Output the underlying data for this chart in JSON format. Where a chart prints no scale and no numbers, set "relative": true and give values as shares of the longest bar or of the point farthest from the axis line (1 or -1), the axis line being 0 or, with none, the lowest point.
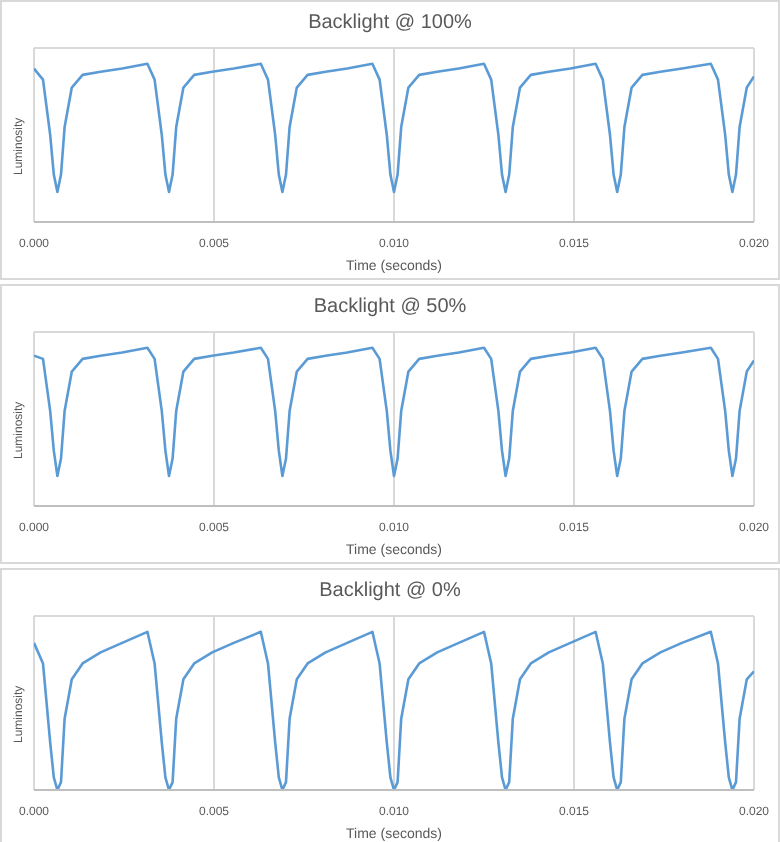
{
  "chart_data": [
    {
      "type": "line",
      "title": "Backlight @ 100%",
      "xlabel": "Time (seconds)",
      "ylabel": "Luminosity",
      "relative": true,
      "grid": true,
      "legend": false,
      "marker": "none",
      "line_style": "solid",
      "xlim": [
        0,
        0.02
      ],
      "xticks": [
        {
          "value": 0,
          "label": "0.000"
        },
        {
          "value": 0.005,
          "label": "0.005"
        },
        {
          "value": 0.01,
          "label": "0.010"
        },
        {
          "value": 0.015,
          "label": "0.015"
        },
        {
          "value": 0.02,
          "label": "0.020"
        }
      ],
      "x": [
        0,
        0.00025,
        0.00045,
        0.00055,
        0.00065,
        0.00075,
        0.00085,
        0.00105,
        0.00135,
        0.00185,
        0.00245,
        0.00315,
        0.00335,
        0.00355,
        0.00365,
        0.00375,
        0.00385,
        0.00395,
        0.00415,
        0.00445,
        0.00495,
        0.00555,
        0.0063,
        0.0065,
        0.0067,
        0.0068,
        0.0069,
        0.007,
        0.0071,
        0.0073,
        0.0076,
        0.0081,
        0.0087,
        0.0094,
        0.0096,
        0.0098,
        0.0099,
        0.01,
        0.0101,
        0.0102,
        0.0104,
        0.0107,
        0.0112,
        0.0118,
        0.0125,
        0.0127,
        0.0129,
        0.013,
        0.0131,
        0.0132,
        0.0133,
        0.0135,
        0.0138,
        0.0143,
        0.0149,
        0.0156,
        0.0158,
        0.016,
        0.0161,
        0.0162,
        0.0163,
        0.0164,
        0.0166,
        0.0169,
        0.0174,
        0.018,
        0.0188,
        0.019,
        0.0192,
        0.0193,
        0.0194,
        0.0195,
        0.0196,
        0.0198,
        0.02
      ],
      "series": [
        {
          "color": "#5b9bd5",
          "values": [
            0.97,
            0.9,
            0.55,
            0.3,
            0.19,
            0.3,
            0.6,
            0.85,
            0.93,
            0.95,
            0.97,
            1.0,
            0.9,
            0.55,
            0.3,
            0.19,
            0.3,
            0.6,
            0.85,
            0.93,
            0.95,
            0.97,
            1.0,
            0.9,
            0.55,
            0.3,
            0.19,
            0.3,
            0.6,
            0.85,
            0.93,
            0.95,
            0.97,
            1.0,
            0.9,
            0.55,
            0.3,
            0.19,
            0.3,
            0.6,
            0.85,
            0.93,
            0.95,
            0.97,
            1.0,
            0.9,
            0.55,
            0.3,
            0.19,
            0.3,
            0.6,
            0.85,
            0.93,
            0.95,
            0.97,
            1.0,
            0.9,
            0.55,
            0.3,
            0.19,
            0.3,
            0.6,
            0.85,
            0.93,
            0.95,
            0.97,
            1.0,
            0.9,
            0.55,
            0.3,
            0.19,
            0.3,
            0.6,
            0.85,
            0.92
          ]
        }
      ]
    },
    {
      "type": "line",
      "title": "Backlight @ 50%",
      "xlabel": "Time (seconds)",
      "ylabel": "Luminosity",
      "relative": true,
      "grid": true,
      "legend": false,
      "marker": "none",
      "line_style": "solid",
      "xlim": [
        0,
        0.02
      ],
      "xticks": [
        {
          "value": 0,
          "label": "0.000"
        },
        {
          "value": 0.005,
          "label": "0.005"
        },
        {
          "value": 0.01,
          "label": "0.010"
        },
        {
          "value": 0.015,
          "label": "0.015"
        },
        {
          "value": 0.02,
          "label": "0.020"
        }
      ],
      "x": [
        0,
        0.00025,
        0.00045,
        0.00055,
        0.00065,
        0.00075,
        0.00085,
        0.00105,
        0.00135,
        0.00185,
        0.00245,
        0.00315,
        0.00335,
        0.00355,
        0.00365,
        0.00375,
        0.00385,
        0.00395,
        0.00415,
        0.00445,
        0.00495,
        0.00555,
        0.0063,
        0.0065,
        0.0067,
        0.0068,
        0.0069,
        0.007,
        0.0071,
        0.0073,
        0.0076,
        0.0081,
        0.0087,
        0.0094,
        0.0096,
        0.0098,
        0.0099,
        0.01,
        0.0101,
        0.0102,
        0.0104,
        0.0107,
        0.0112,
        0.0118,
        0.0125,
        0.0127,
        0.0129,
        0.013,
        0.0131,
        0.0132,
        0.0133,
        0.0135,
        0.0138,
        0.0143,
        0.0149,
        0.0156,
        0.0158,
        0.016,
        0.0161,
        0.0162,
        0.0163,
        0.0164,
        0.0166,
        0.0169,
        0.0174,
        0.018,
        0.0188,
        0.019,
        0.0192,
        0.0193,
        0.0194,
        0.0195,
        0.0196,
        0.0198,
        0.02
      ],
      "series": [
        {
          "color": "#5b9bd5",
          "values": [
            0.95,
            0.93,
            0.6,
            0.35,
            0.19,
            0.3,
            0.6,
            0.85,
            0.93,
            0.95,
            0.97,
            1.0,
            0.93,
            0.6,
            0.35,
            0.19,
            0.3,
            0.6,
            0.85,
            0.93,
            0.95,
            0.97,
            1.0,
            0.93,
            0.6,
            0.35,
            0.19,
            0.3,
            0.6,
            0.85,
            0.93,
            0.95,
            0.97,
            1.0,
            0.93,
            0.6,
            0.35,
            0.19,
            0.3,
            0.6,
            0.85,
            0.93,
            0.95,
            0.97,
            1.0,
            0.93,
            0.6,
            0.35,
            0.19,
            0.3,
            0.6,
            0.85,
            0.93,
            0.95,
            0.97,
            1.0,
            0.93,
            0.6,
            0.35,
            0.19,
            0.3,
            0.6,
            0.85,
            0.93,
            0.95,
            0.97,
            1.0,
            0.93,
            0.6,
            0.35,
            0.19,
            0.3,
            0.6,
            0.85,
            0.92
          ]
        }
      ]
    },
    {
      "type": "line",
      "title": "Backlight @ 0%",
      "xlabel": "Time (seconds)",
      "ylabel": "Luminosity",
      "relative": true,
      "grid": true,
      "legend": false,
      "marker": "none",
      "line_style": "solid",
      "xlim": [
        0,
        0.02
      ],
      "xticks": [
        {
          "value": 0,
          "label": "0.000"
        },
        {
          "value": 0.005,
          "label": "0.005"
        },
        {
          "value": 0.01,
          "label": "0.010"
        },
        {
          "value": 0.015,
          "label": "0.015"
        },
        {
          "value": 0.02,
          "label": "0.020"
        }
      ],
      "x": [
        0,
        0.00025,
        0.00045,
        0.00055,
        0.00065,
        0.00075,
        0.00085,
        0.00105,
        0.00135,
        0.00185,
        0.00245,
        0.00315,
        0.00335,
        0.00355,
        0.00365,
        0.00375,
        0.00385,
        0.00395,
        0.00415,
        0.00445,
        0.00495,
        0.00555,
        0.0063,
        0.0065,
        0.0067,
        0.0068,
        0.0069,
        0.007,
        0.0071,
        0.0073,
        0.0076,
        0.0081,
        0.0087,
        0.0094,
        0.0096,
        0.0098,
        0.0099,
        0.01,
        0.0101,
        0.0102,
        0.0104,
        0.0107,
        0.0112,
        0.0118,
        0.0125,
        0.0127,
        0.0129,
        0.013,
        0.0131,
        0.0132,
        0.0133,
        0.0135,
        0.0138,
        0.0143,
        0.0149,
        0.0156,
        0.0158,
        0.016,
        0.0161,
        0.0162,
        0.0163,
        0.0164,
        0.0166,
        0.0169,
        0.0174,
        0.018,
        0.0188,
        0.019,
        0.0192,
        0.0193,
        0.0194,
        0.0195,
        0.0196,
        0.0198,
        0.02
      ],
      "series": [
        {
          "color": "#5b9bd5",
          "values": [
            0.93,
            0.8,
            0.3,
            0.08,
            0,
            0.05,
            0.45,
            0.7,
            0.8,
            0.87,
            0.93,
            1.0,
            0.8,
            0.3,
            0.08,
            0,
            0.05,
            0.45,
            0.7,
            0.8,
            0.87,
            0.93,
            1.0,
            0.8,
            0.3,
            0.08,
            0,
            0.05,
            0.45,
            0.7,
            0.8,
            0.87,
            0.93,
            1.0,
            0.8,
            0.3,
            0.08,
            0,
            0.05,
            0.45,
            0.7,
            0.8,
            0.87,
            0.93,
            1.0,
            0.8,
            0.3,
            0.08,
            0,
            0.05,
            0.45,
            0.7,
            0.8,
            0.87,
            0.93,
            1.0,
            0.8,
            0.3,
            0.08,
            0,
            0.05,
            0.45,
            0.7,
            0.8,
            0.87,
            0.93,
            1.0,
            0.8,
            0.3,
            0.08,
            0,
            0.05,
            0.45,
            0.7,
            0.75
          ]
        }
      ]
    }
  ]
}
